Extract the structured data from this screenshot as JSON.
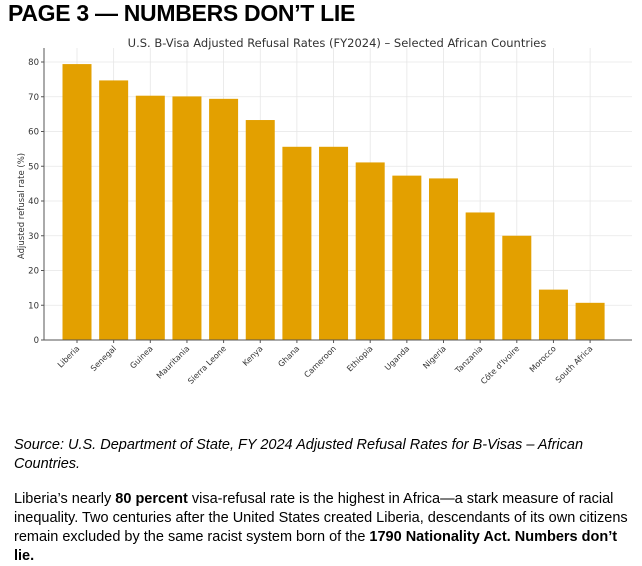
{
  "heading": "PAGE 3 — NUMBERS DON’T LIE",
  "chart_data": {
    "type": "bar",
    "title": "U.S. B-Visa Adjusted Refusal Rates (FY2024) – Selected African Countries",
    "xlabel": "",
    "ylabel": "Adjusted refusal rate (%)",
    "ylim": [
      0,
      82
    ],
    "yticks": [
      0,
      10,
      20,
      30,
      40,
      50,
      60,
      70,
      80
    ],
    "grid": true,
    "bar_color": "#E3A000",
    "categories": [
      "Liberia",
      "Senegal",
      "Guinea",
      "Mauritania",
      "Sierra Leone",
      "Kenya",
      "Ghana",
      "Cameroon",
      "Ethiopia",
      "Uganda",
      "Nigeria",
      "Tanzania",
      "Côte d'Ivoire",
      "Morocco",
      "South Africa"
    ],
    "values": [
      79.4,
      74.7,
      70.3,
      70.1,
      69.4,
      63.3,
      55.6,
      55.6,
      51.1,
      47.3,
      46.5,
      36.7,
      30.0,
      14.5,
      10.7
    ]
  },
  "source": "Source: U.S. Department of State, FY 2024 Adjusted Refusal Rates for B-Visas – African Countries.",
  "body": {
    "part1": "Liberia’s nearly ",
    "bold1": "80 percent",
    "part2": " visa-refusal rate is the highest in Africa—a stark measure of racial inequality. Two centuries after the United States created Liberia, descendants of its own citizens remain excluded by the same racist system born of the ",
    "bold2": "1790 Nationality Act. Numbers don’t lie."
  }
}
